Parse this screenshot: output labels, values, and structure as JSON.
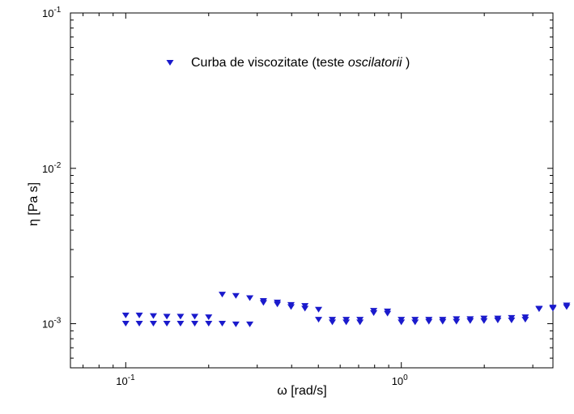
{
  "chart_data": {
    "type": "scatter",
    "xlabel": "ω [rad/s]",
    "ylabel": "η [Pa s]",
    "x_scale": "log",
    "y_scale": "log",
    "xlim": [
      0.063,
      3.55
    ],
    "ylim": [
      0.00052,
      0.1
    ],
    "grid": false,
    "legend_position": "top-center",
    "x_ticks": [
      {
        "base": "10",
        "exp": "-1",
        "value": 0.1
      },
      {
        "base": "10",
        "exp": "0",
        "value": 1
      }
    ],
    "y_ticks": [
      {
        "base": "10",
        "exp": "-1",
        "value": 0.1
      },
      {
        "base": "10",
        "exp": "-2",
        "value": 0.01
      },
      {
        "base": "10",
        "exp": "-3",
        "value": 0.001
      }
    ],
    "series": [
      {
        "name": "Curba de viscozitate (teste oscilatorii )",
        "name_plain": "Curba de viscozitate (teste ",
        "name_italic": "oscilatorii",
        "name_suffix": " )",
        "color": "#1a1acc",
        "marker": "triangle-down",
        "points": [
          {
            "x": 0.1,
            "y": 0.00113
          },
          {
            "x": 0.1,
            "y": 0.001
          },
          {
            "x": 0.112,
            "y": 0.00113
          },
          {
            "x": 0.112,
            "y": 0.001
          },
          {
            "x": 0.126,
            "y": 0.00112
          },
          {
            "x": 0.126,
            "y": 0.001
          },
          {
            "x": 0.141,
            "y": 0.00111
          },
          {
            "x": 0.141,
            "y": 0.001
          },
          {
            "x": 0.158,
            "y": 0.00111
          },
          {
            "x": 0.158,
            "y": 0.001
          },
          {
            "x": 0.178,
            "y": 0.00111
          },
          {
            "x": 0.178,
            "y": 0.001
          },
          {
            "x": 0.2,
            "y": 0.0011
          },
          {
            "x": 0.2,
            "y": 0.001
          },
          {
            "x": 0.224,
            "y": 0.00154
          },
          {
            "x": 0.224,
            "y": 0.001
          },
          {
            "x": 0.251,
            "y": 0.00151
          },
          {
            "x": 0.251,
            "y": 0.00099
          },
          {
            "x": 0.282,
            "y": 0.00146
          },
          {
            "x": 0.282,
            "y": 0.00099
          },
          {
            "x": 0.316,
            "y": 0.0014
          },
          {
            "x": 0.316,
            "y": 0.00136
          },
          {
            "x": 0.355,
            "y": 0.00137
          },
          {
            "x": 0.355,
            "y": 0.00133
          },
          {
            "x": 0.398,
            "y": 0.00132
          },
          {
            "x": 0.398,
            "y": 0.00128
          },
          {
            "x": 0.447,
            "y": 0.0013
          },
          {
            "x": 0.447,
            "y": 0.00125
          },
          {
            "x": 0.501,
            "y": 0.00123
          },
          {
            "x": 0.501,
            "y": 0.00106
          },
          {
            "x": 0.562,
            "y": 0.00106
          },
          {
            "x": 0.562,
            "y": 0.00102
          },
          {
            "x": 0.631,
            "y": 0.00106
          },
          {
            "x": 0.631,
            "y": 0.00102
          },
          {
            "x": 0.708,
            "y": 0.00106
          },
          {
            "x": 0.708,
            "y": 0.00102
          },
          {
            "x": 0.794,
            "y": 0.00121
          },
          {
            "x": 0.794,
            "y": 0.00117
          },
          {
            "x": 0.891,
            "y": 0.0012
          },
          {
            "x": 0.891,
            "y": 0.00116
          },
          {
            "x": 1.0,
            "y": 0.00106
          },
          {
            "x": 1.0,
            "y": 0.00102
          },
          {
            "x": 1.122,
            "y": 0.00106
          },
          {
            "x": 1.122,
            "y": 0.00102
          },
          {
            "x": 1.259,
            "y": 0.00106
          },
          {
            "x": 1.259,
            "y": 0.00103
          },
          {
            "x": 1.413,
            "y": 0.00106
          },
          {
            "x": 1.413,
            "y": 0.00103
          },
          {
            "x": 1.585,
            "y": 0.00107
          },
          {
            "x": 1.585,
            "y": 0.00103
          },
          {
            "x": 1.778,
            "y": 0.00107
          },
          {
            "x": 1.778,
            "y": 0.00104
          },
          {
            "x": 1.995,
            "y": 0.00108
          },
          {
            "x": 1.995,
            "y": 0.00104
          },
          {
            "x": 2.239,
            "y": 0.00108
          },
          {
            "x": 2.239,
            "y": 0.00105
          },
          {
            "x": 2.512,
            "y": 0.00109
          },
          {
            "x": 2.512,
            "y": 0.00105
          },
          {
            "x": 2.818,
            "y": 0.0011
          },
          {
            "x": 2.818,
            "y": 0.00106
          },
          {
            "x": 3.162,
            "y": 0.00125
          },
          {
            "x": 3.162,
            "y": 0.00124
          },
          {
            "x": 3.548,
            "y": 0.00127
          },
          {
            "x": 3.548,
            "y": 0.00125
          },
          {
            "x": 3.981,
            "y": 0.00131
          },
          {
            "x": 3.981,
            "y": 0.00128
          }
        ]
      }
    ]
  }
}
